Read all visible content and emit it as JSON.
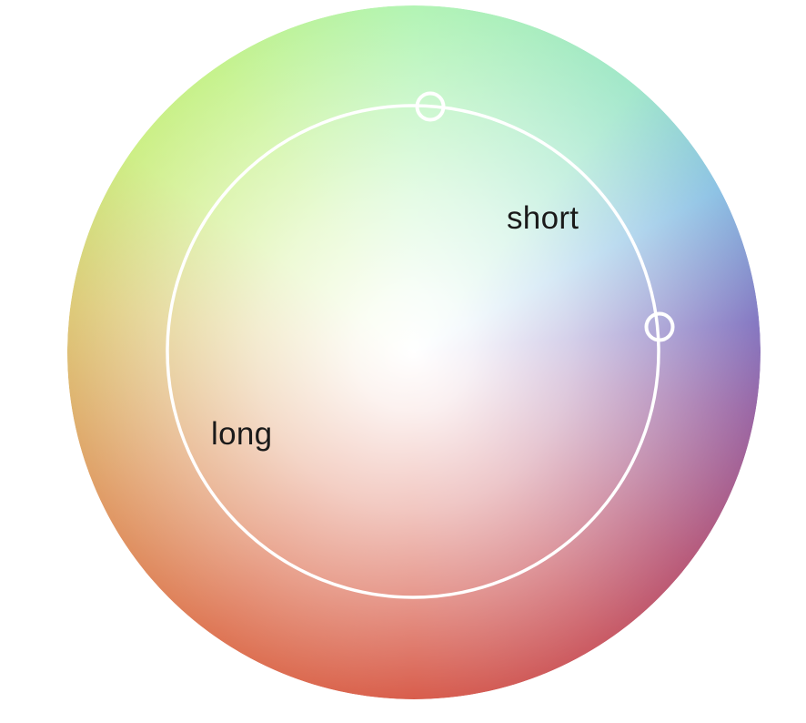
{
  "labels": {
    "short": "short",
    "long": "long"
  },
  "colors": {
    "ring": "#ffffff",
    "label_text": "#1a1a1a"
  }
}
